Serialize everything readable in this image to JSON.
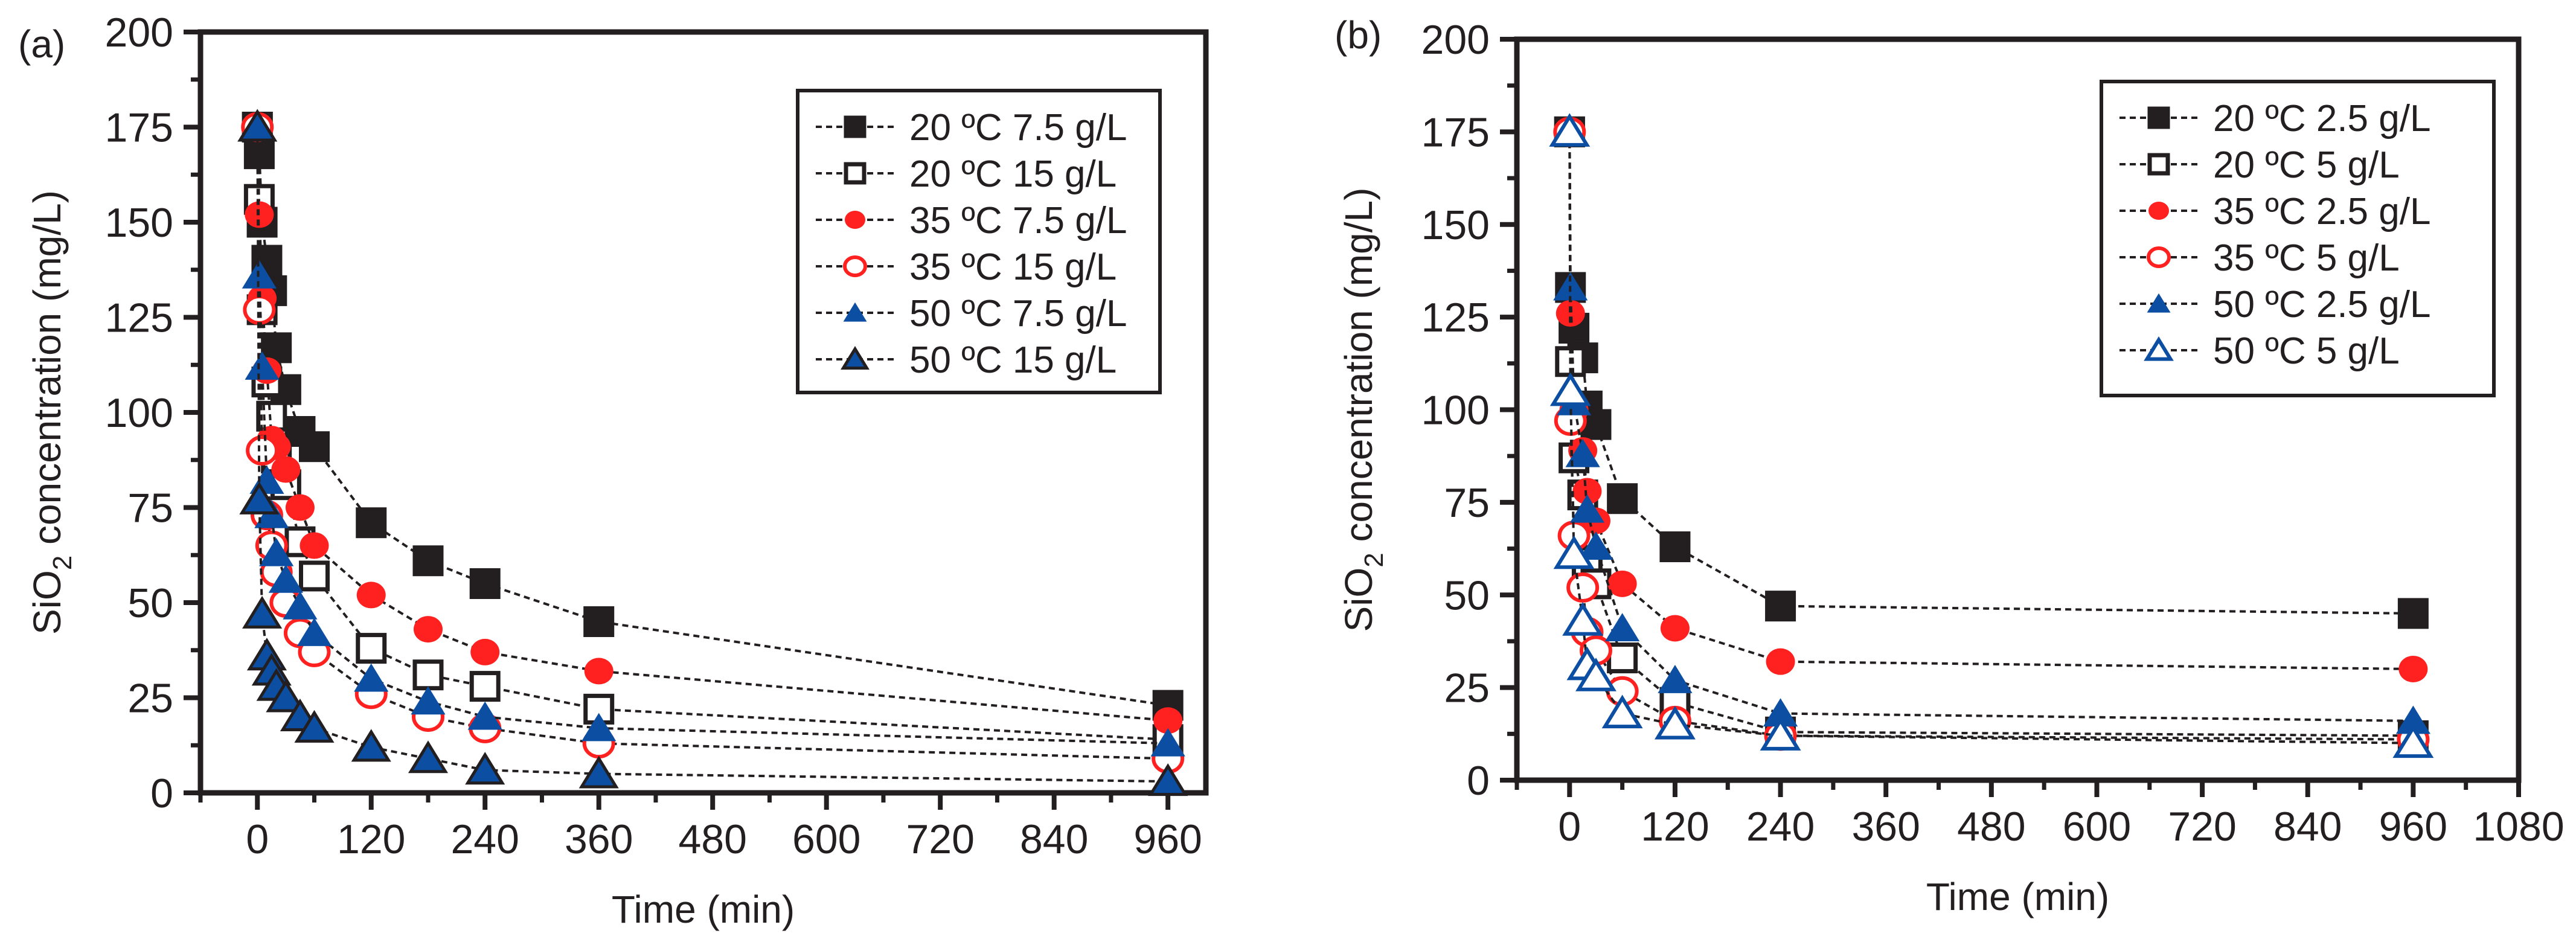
{
  "colors": {
    "black": "#231f20",
    "red": "#ff2020",
    "blue": "#0b4ea2"
  },
  "chart_data": [
    {
      "type": "line",
      "panel_label": "(a)",
      "xlabel": "Time (min)",
      "ylabel_main": "SiO",
      "ylabel_sub": "2",
      "ylabel_rest": " concentration (mg/L)",
      "xlim": [
        -60,
        1000
      ],
      "ylim": [
        0,
        200
      ],
      "xticks": [
        "0",
        "120",
        "240",
        "360",
        "480",
        "600",
        "720",
        "840",
        "960"
      ],
      "yticks": [
        "0",
        "25",
        "50",
        "75",
        "100",
        "125",
        "150",
        "175",
        "200"
      ],
      "grid": false,
      "legend_placement": "top-right",
      "x": [
        0,
        2,
        5,
        10,
        15,
        20,
        30,
        45,
        60,
        120,
        180,
        240,
        360,
        960
      ],
      "series": [
        {
          "name": "20 ºC 7.5 g/L",
          "marker": "square",
          "fill": true,
          "color": "black",
          "values": [
            175,
            168,
            150,
            140,
            132,
            117,
            106,
            95,
            91,
            71,
            61,
            55,
            45,
            23
          ]
        },
        {
          "name": "20 ºC 15 g/L",
          "marker": "square",
          "fill": false,
          "color": "black",
          "values": [
            175,
            156,
            127,
            108,
            99,
            88,
            81,
            66,
            57,
            38,
            31,
            28,
            22,
            14
          ]
        },
        {
          "name": "35 ºC 7.5 g/L",
          "marker": "circle",
          "fill": true,
          "color": "red",
          "values": [
            175,
            152,
            130,
            111,
            93,
            91,
            85,
            75,
            65,
            52,
            43,
            37,
            32,
            19
          ]
        },
        {
          "name": "35 ºC 15 g/L",
          "marker": "circle",
          "fill": false,
          "color": "red",
          "values": [
            175,
            127,
            90,
            73,
            65,
            58,
            50,
            42,
            37,
            26,
            20,
            17,
            13,
            9
          ]
        },
        {
          "name": "50 ºC 7.5 g/L",
          "marker": "triangle",
          "fill": true,
          "color": "blue",
          "values": [
            175,
            136,
            112,
            82,
            73,
            63,
            56,
            49,
            42,
            30,
            24,
            20,
            17,
            13
          ]
        },
        {
          "name": "50 ºC 15 g/L",
          "marker": "triangle-dark",
          "fill": true,
          "color": "blue",
          "values": [
            175,
            77,
            47,
            36,
            32,
            28,
            25,
            20,
            17,
            12,
            9,
            6,
            5,
            3
          ]
        }
      ]
    },
    {
      "type": "line",
      "panel_label": "(b)",
      "xlabel": "Time (min)",
      "ylabel_main": "SiO",
      "ylabel_sub": "2",
      "ylabel_rest": " concentration (mg/L)",
      "xlim": [
        -60,
        1080
      ],
      "ylim": [
        0,
        200
      ],
      "xticks": [
        "0",
        "120",
        "240",
        "360",
        "480",
        "600",
        "720",
        "840",
        "960",
        "1080"
      ],
      "yticks": [
        "0",
        "25",
        "50",
        "75",
        "100",
        "125",
        "150",
        "175",
        "200"
      ],
      "grid": false,
      "legend_placement": "top-right",
      "x": [
        0,
        1,
        5,
        15,
        20,
        30,
        60,
        120,
        240,
        960
      ],
      "series": [
        {
          "name": "20 ºC 2.5 g/L",
          "marker": "square",
          "fill": true,
          "color": "black",
          "values": [
            175,
            133,
            122,
            114,
            101,
            96,
            76,
            63,
            47,
            45
          ]
        },
        {
          "name": "20 ºC 5 g/L",
          "marker": "square",
          "fill": false,
          "color": "black",
          "values": [
            175,
            113,
            87,
            77,
            59,
            53,
            33,
            21,
            13,
            12
          ]
        },
        {
          "name": "35 ºC 2.5 g/L",
          "marker": "circle",
          "fill": true,
          "color": "red",
          "values": [
            175,
            126,
            100,
            89,
            78,
            70,
            53,
            41,
            32,
            30
          ]
        },
        {
          "name": "35 ºC 5 g/L",
          "marker": "circle",
          "fill": false,
          "color": "red",
          "values": [
            175,
            97,
            66,
            52,
            40,
            35,
            24,
            16,
            12,
            11
          ]
        },
        {
          "name": "50 ºC 2.5 g/L",
          "marker": "triangle",
          "fill": true,
          "color": "blue",
          "values": [
            175,
            133,
            102,
            88,
            73,
            63,
            41,
            27,
            18,
            16
          ]
        },
        {
          "name": "50 ºC 5 g/L",
          "marker": "triangle",
          "fill": false,
          "color": "blue",
          "values": [
            175,
            105,
            61,
            43,
            31,
            28,
            18,
            15,
            12,
            10
          ]
        }
      ]
    }
  ]
}
